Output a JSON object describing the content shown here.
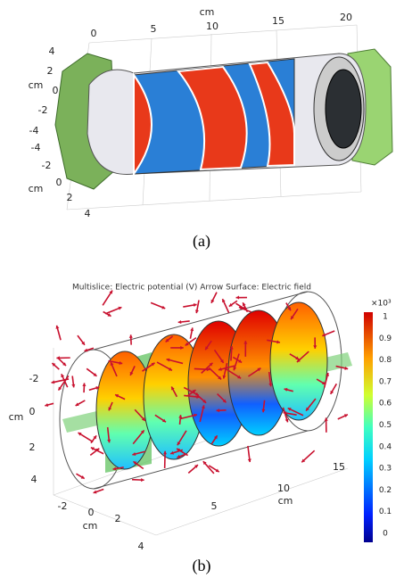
{
  "panel_a": {
    "caption": "(a)",
    "length_axis": {
      "label": "cm",
      "ticks": [
        "0",
        "5",
        "10",
        "15",
        "20"
      ]
    },
    "vertical_axis": {
      "label": "cm",
      "ticks": [
        "4",
        "2",
        "0",
        "-2",
        "-4"
      ]
    },
    "depth_axis": {
      "label": "cm",
      "ticks": [
        "-4",
        "-2",
        "0",
        "2",
        "4"
      ]
    }
  },
  "panel_b": {
    "caption": "(b)",
    "title": "Multislice: Electric potential (V)  Arrow Surface: Electric field",
    "colorbar": {
      "multiplier": "×10³",
      "ticks": [
        "1",
        "0.9",
        "0.8",
        "0.7",
        "0.6",
        "0.5",
        "0.4",
        "0.3",
        "0.2",
        "0.1",
        "0"
      ]
    },
    "vertical_axis": {
      "label": "cm",
      "ticks": [
        "-2",
        "0",
        "2",
        "4"
      ]
    },
    "depth_axis": {
      "label": "cm",
      "ticks": [
        "-2",
        "0",
        "2",
        "4"
      ]
    },
    "length_axis": {
      "label": "cm",
      "ticks": [
        "5",
        "10",
        "15"
      ]
    }
  }
}
